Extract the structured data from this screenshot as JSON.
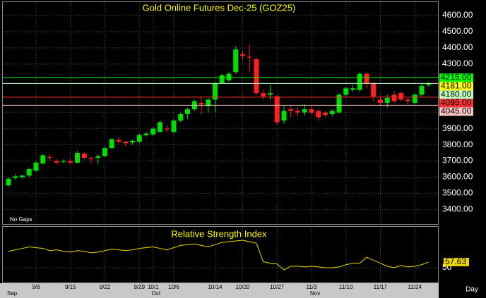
{
  "chart_data": [
    {
      "type": "candlestick",
      "title": "Gold Online Futures Dec-25 (GOZ25)",
      "annotation": "No Gaps",
      "categories": [
        null,
        null,
        null,
        null,
        "9/8",
        null,
        null,
        null,
        null,
        "9/15",
        null,
        null,
        null,
        null,
        "9/22",
        null,
        null,
        null,
        null,
        "9/29",
        null,
        "10/1",
        null,
        null,
        "10/6",
        null,
        null,
        null,
        null,
        null,
        "10/14",
        null,
        null,
        null,
        "10/20",
        null,
        null,
        null,
        null,
        "10/27",
        null,
        null,
        null,
        null,
        "11/3",
        null,
        null,
        null,
        null,
        "11/10",
        null,
        null,
        null,
        null,
        "11/17",
        null,
        null,
        null,
        null,
        "11/24",
        null,
        null
      ],
      "months": [
        {
          "category": 0,
          "label": "Sep"
        },
        {
          "category": 21,
          "label": "Oct"
        },
        {
          "category": 44,
          "label": "Nov"
        }
      ],
      "open": [
        3550,
        3595,
        3600,
        3610,
        3640,
        3685,
        3725,
        3700,
        3695,
        3700,
        3690,
        3745,
        3720,
        3720,
        3730,
        3780,
        3830,
        3820,
        3815,
        3820,
        3860,
        3865,
        3880,
        3900,
        3880,
        3950,
        3990,
        4020,
        4060,
        4040,
        4080,
        4180,
        4200,
        4250,
        4360,
        4345,
        4330,
        4120,
        4110,
        4100,
        3950,
        4020,
        4010,
        4000,
        4020,
        4010,
        4000,
        3990,
        4000,
        4110,
        4140,
        4140,
        4240,
        4180,
        4080,
        4060,
        4110,
        4120,
        4080,
        4060,
        4110,
        4170
      ],
      "high": [
        3600,
        3620,
        3615,
        3660,
        3700,
        3745,
        3740,
        3710,
        3710,
        3715,
        3760,
        3755,
        3725,
        3740,
        3790,
        3840,
        3845,
        3825,
        3830,
        3870,
        3880,
        3910,
        3950,
        3920,
        3960,
        4000,
        4030,
        4080,
        4100,
        4090,
        4190,
        4240,
        4250,
        4410,
        4380,
        4420,
        4340,
        4140,
        4170,
        4110,
        4040,
        4040,
        4030,
        4050,
        4040,
        4020,
        4010,
        4020,
        4120,
        4160,
        4170,
        4250,
        4250,
        4190,
        4100,
        4110,
        4130,
        4130,
        4090,
        4120,
        4180,
        4190
      ],
      "low": [
        3540,
        3585,
        3590,
        3600,
        3635,
        3680,
        3700,
        3680,
        3685,
        3680,
        3685,
        3710,
        3690,
        3680,
        3725,
        3775,
        3810,
        3790,
        3800,
        3810,
        3850,
        3855,
        3875,
        3880,
        3870,
        3940,
        3960,
        4010,
        3990,
        4000,
        4000,
        4175,
        4190,
        4240,
        4330,
        4250,
        4110,
        4080,
        4080,
        3920,
        3930,
        3970,
        3980,
        3980,
        3985,
        3950,
        3970,
        3975,
        3995,
        4100,
        4130,
        4130,
        4150,
        4070,
        4040,
        4030,
        4060,
        4070,
        4050,
        4050,
        4100,
        4160
      ],
      "close": [
        3590,
        3605,
        3610,
        3650,
        3690,
        3735,
        3720,
        3690,
        3700,
        3690,
        3750,
        3720,
        3715,
        3730,
        3780,
        3835,
        3820,
        3810,
        3825,
        3860,
        3870,
        3900,
        3940,
        3895,
        3950,
        3990,
        4020,
        4070,
        4050,
        4080,
        4180,
        4230,
        4240,
        4390,
        4350,
        4340,
        4120,
        4100,
        4120,
        3940,
        4010,
        4010,
        4000,
        4020,
        4000,
        3970,
        3985,
        4010,
        4110,
        4150,
        4150,
        4240,
        4180,
        4100,
        4060,
        4090,
        4070,
        4080,
        4070,
        4110,
        4165,
        4181
      ],
      "up_color": "#00e000",
      "down_color": "#ff2020",
      "ylim": [
        3310,
        4683
      ],
      "yticks": [
        {
          "value": 3400,
          "label": "3400.00"
        },
        {
          "value": 3500,
          "label": "3500.00"
        },
        {
          "value": 3600,
          "label": "3600.00"
        },
        {
          "value": 3700,
          "label": "3700.00"
        },
        {
          "value": 3800,
          "label": "3800.00"
        },
        {
          "value": 3900,
          "label": "3900.00"
        },
        {
          "value": 4000,
          "label": "4000.00"
        },
        {
          "value": 4300,
          "label": "4300.00"
        },
        {
          "value": 4400,
          "label": "4400.00"
        },
        {
          "value": 4500,
          "label": "4500.00"
        },
        {
          "value": 4600,
          "label": "4600.00"
        }
      ],
      "grid": true,
      "levels": [
        {
          "value": 4215,
          "label": "4215.00",
          "color": "#00ff00",
          "line": true
        },
        {
          "value": 4181,
          "label": "4181.00",
          "color": "#ffff00",
          "line": false
        },
        {
          "value": 4180,
          "label": "4180.00",
          "color": "#c0ffc0",
          "line": true
        },
        {
          "value": 4095,
          "label": "4095.00",
          "color": "#ff3030",
          "line": true
        },
        {
          "value": 4045,
          "label": "4045.00",
          "color": "#ffc8c8",
          "line": true
        }
      ]
    },
    {
      "type": "line",
      "title": "Relative Strength Index",
      "x_label": "Day",
      "series": [
        {
          "color": "#e8d800",
          "values": [
            72,
            74,
            76,
            78,
            77,
            76,
            73,
            74,
            72,
            71,
            73,
            72,
            70,
            71,
            73,
            75,
            74,
            73,
            74,
            76,
            77,
            78,
            76,
            74,
            77,
            80,
            81,
            82,
            80,
            78,
            81,
            84,
            85,
            86,
            87,
            85,
            83,
            58,
            56,
            55,
            47,
            52,
            52,
            51,
            52,
            51,
            50,
            50,
            51,
            54,
            56,
            56,
            64,
            60,
            56,
            52,
            50,
            53,
            51,
            52,
            54,
            57.63
          ]
        }
      ],
      "ylim": [
        31,
        105
      ],
      "yticks": [
        50
      ],
      "grid": true
    }
  ]
}
